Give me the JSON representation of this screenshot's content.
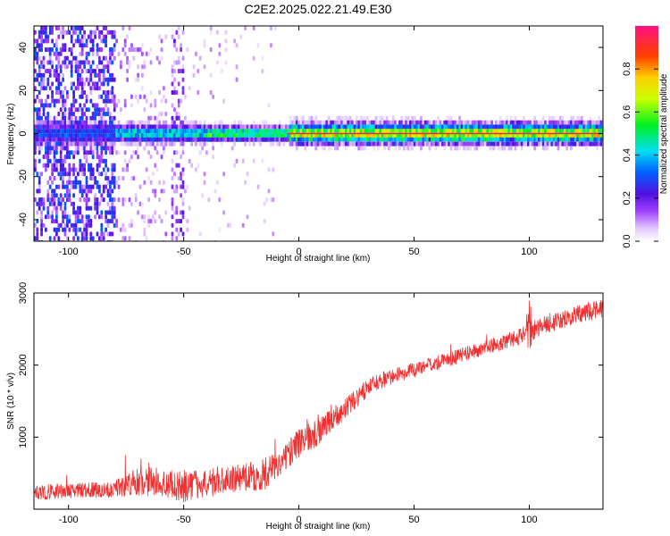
{
  "title": "C2E2.2025.022.21.49.E30",
  "colors": {
    "snr_line": "#f03030",
    "background": "#ffffff",
    "frame": "#000000"
  },
  "colorbar": {
    "label": "Normalized spectral amplitude",
    "range": [
      0,
      1
    ],
    "ticks": [
      "0.0",
      "0.2",
      "0.4",
      "0.6",
      "0.8"
    ],
    "tick_values": [
      0.0,
      0.2,
      0.4,
      0.6,
      0.8
    ],
    "colormap": "rainbow-white-violet-blue-cyan-green-yellow-orange-red-magenta"
  },
  "chart_data": [
    {
      "type": "heatmap",
      "xlabel": "Height of straight line (km)",
      "ylabel": "Frequency (Hz)",
      "xlim": [
        -115,
        132
      ],
      "ylim": [
        -50,
        50
      ],
      "xticks": [
        -100,
        -50,
        0,
        50,
        100
      ],
      "xtick_labels": [
        "-100",
        "-50",
        "0",
        "50",
        "100"
      ],
      "yticks": [
        -40,
        -20,
        0,
        20,
        40
      ],
      "ytick_labels": [
        "-40",
        "-20",
        "0",
        "20",
        "40"
      ],
      "grid": false,
      "bands": [
        {
          "x": [
            -115,
            -80
          ],
          "width_hz": 4,
          "amplitude": 0.3
        },
        {
          "x": [
            -80,
            -40
          ],
          "width_hz": 3,
          "amplitude": 0.45
        },
        {
          "x": [
            -40,
            -5
          ],
          "width_hz": 2.5,
          "amplitude": 0.55
        },
        {
          "x": [
            -5,
            132
          ],
          "width_hz": 3.5,
          "amplitude": 0.7
        }
      ],
      "noise_regions": [
        {
          "x": [
            -115,
            -80
          ],
          "density": 0.5,
          "amplitude": 0.18
        },
        {
          "x": [
            -80,
            -58
          ],
          "density": 0.15,
          "amplitude": 0.08
        },
        {
          "x": [
            -56,
            -50
          ],
          "density": 0.35,
          "amplitude": 0.12
        },
        {
          "x": [
            -50,
            -10
          ],
          "density": 0.05,
          "amplitude": 0.06
        }
      ]
    },
    {
      "type": "line",
      "xlabel": "Height of straight line (km)",
      "ylabel": "SNR (10 * v/v)",
      "xlim": [
        -115,
        132
      ],
      "ylim": [
        0,
        3000
      ],
      "xticks": [
        -100,
        -50,
        0,
        50,
        100
      ],
      "xtick_labels": [
        "-100",
        "-50",
        "0",
        "50",
        "100"
      ],
      "yticks": [
        1000,
        2000,
        3000
      ],
      "ytick_labels": [
        "1000",
        "2000",
        "3000"
      ],
      "grid": false,
      "series": [
        {
          "x": [
            -115,
            -100,
            -90,
            -80,
            -75,
            -70,
            -65,
            -60,
            -55,
            -50,
            -45,
            -40,
            -35,
            -30,
            -25,
            -20,
            -15,
            -10,
            -5,
            0,
            5,
            10,
            15,
            20,
            25,
            30,
            35,
            40,
            45,
            50,
            55,
            60,
            65,
            70,
            75,
            80,
            85,
            90,
            95,
            98,
            100,
            102,
            105,
            110,
            115,
            120,
            125,
            132
          ],
          "y": [
            200,
            220,
            230,
            240,
            260,
            300,
            320,
            300,
            280,
            260,
            280,
            300,
            330,
            360,
            380,
            400,
            420,
            550,
            700,
            850,
            950,
            1050,
            1200,
            1350,
            1500,
            1650,
            1750,
            1800,
            1850,
            1900,
            1950,
            2000,
            2050,
            2100,
            2150,
            2200,
            2250,
            2300,
            2350,
            2400,
            2450,
            2400,
            2500,
            2550,
            2600,
            2650,
            2700,
            2750
          ],
          "noise": [
            150,
            150,
            160,
            170,
            250,
            350,
            300,
            250,
            300,
            350,
            280,
            280,
            300,
            250,
            280,
            300,
            330,
            250,
            280,
            300,
            280,
            280,
            250,
            200,
            200,
            180,
            160,
            150,
            150,
            150,
            150,
            150,
            150,
            150,
            150,
            150,
            150,
            150,
            160,
            200,
            500,
            250,
            180,
            180,
            180,
            180,
            180,
            180
          ]
        }
      ]
    }
  ]
}
